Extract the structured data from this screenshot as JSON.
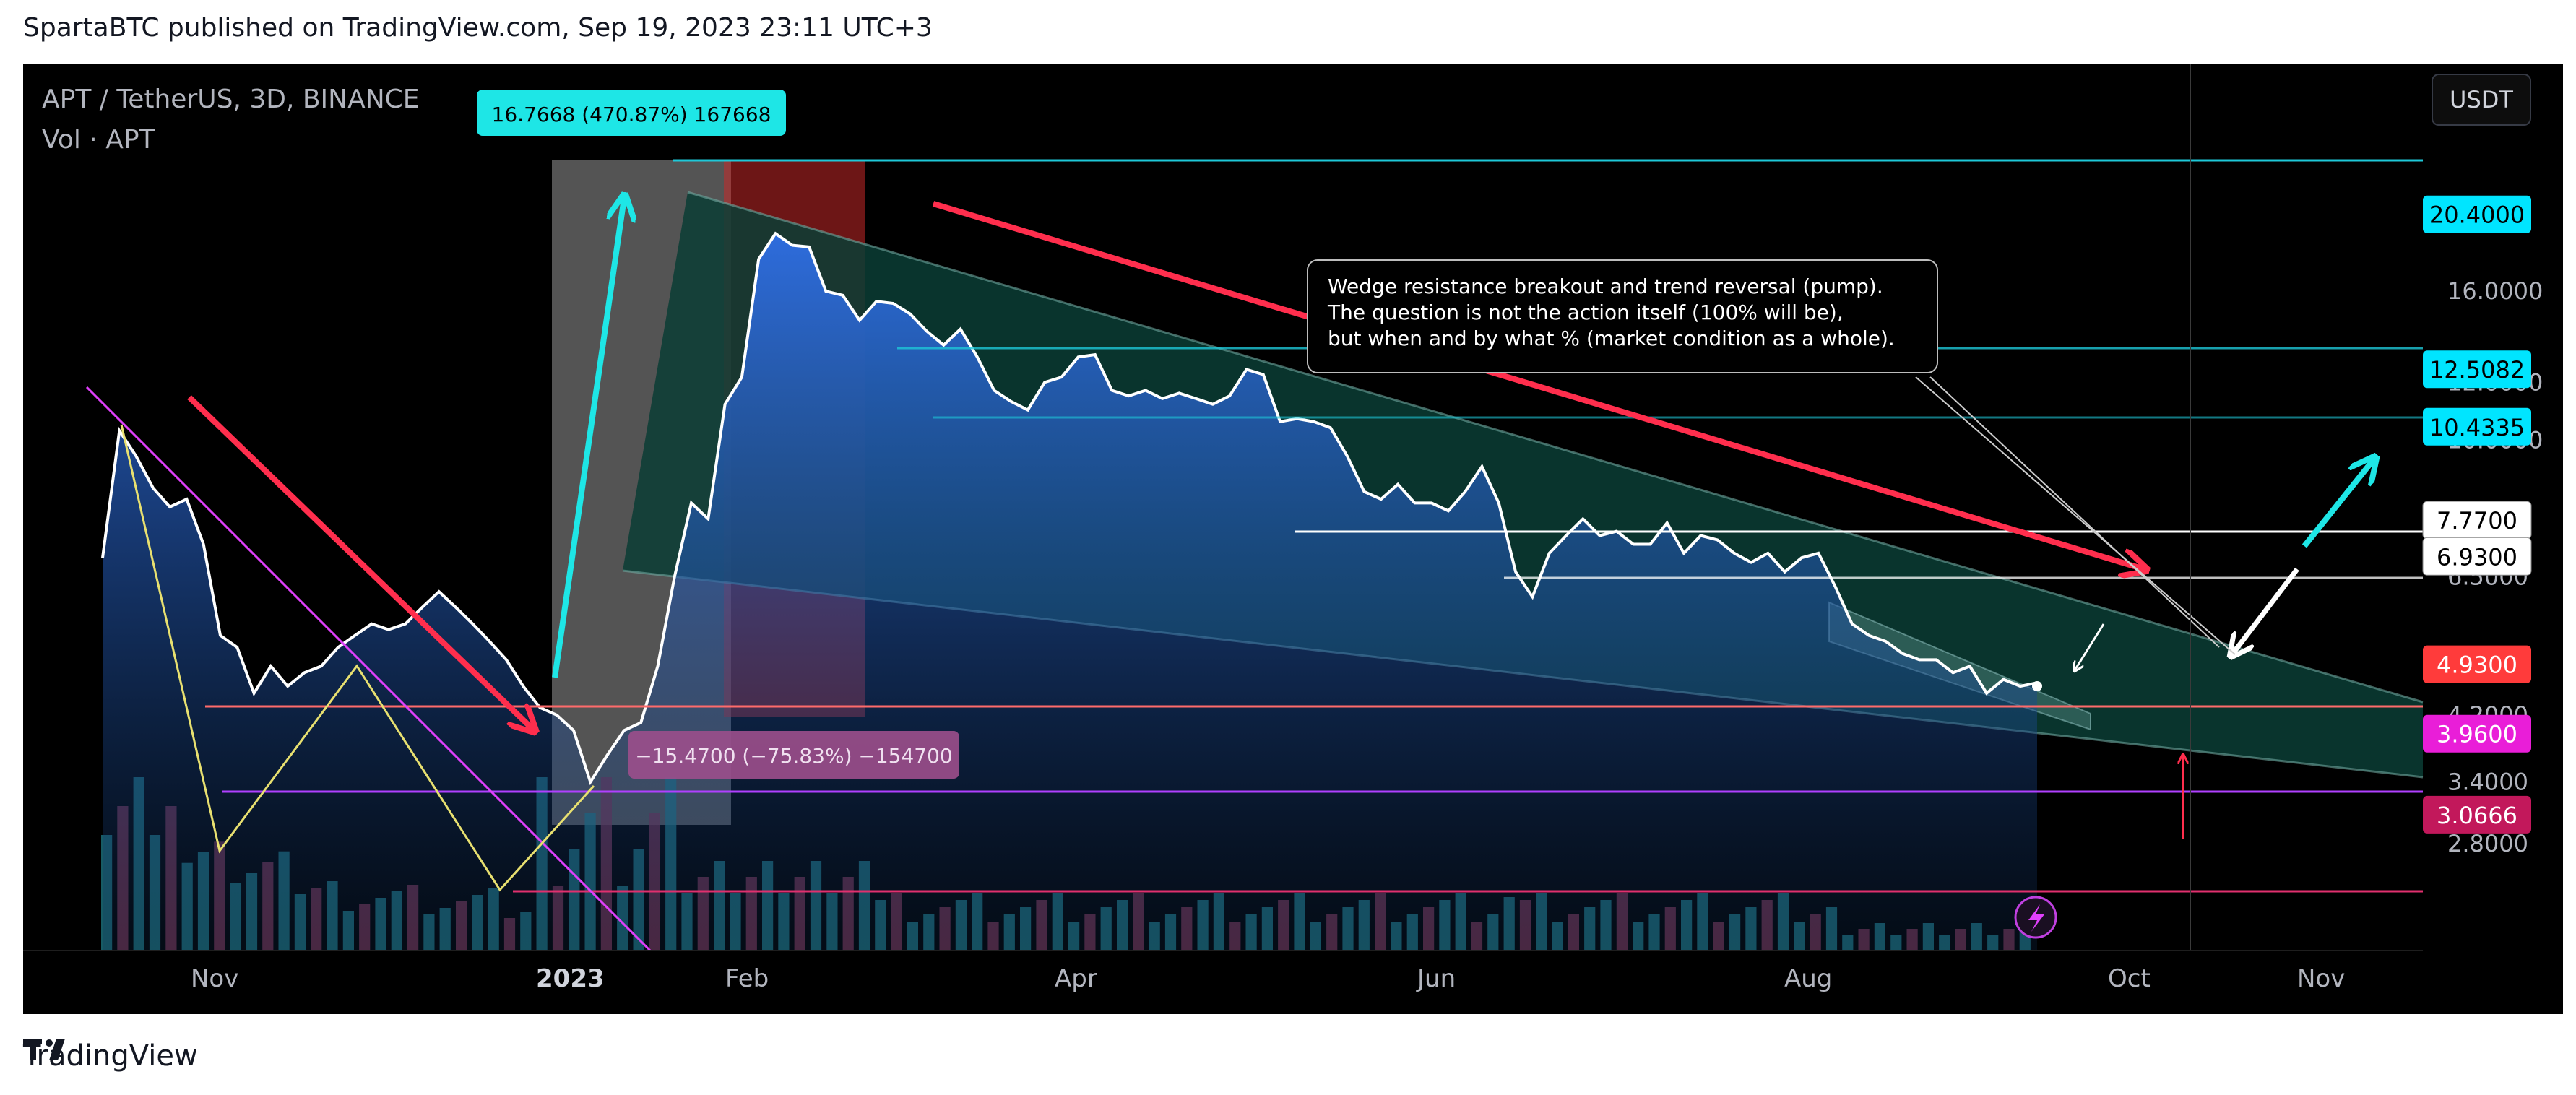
{
  "header": {
    "text": "SpartaBTC published on TradingView.com, Sep 19, 2023 23:11 UTC+3"
  },
  "symbol": {
    "pair": "APT / TetherUS, 3D, BINANCE",
    "volume": "Vol · APT"
  },
  "currency_button": "USDT",
  "footer": {
    "brand": "TradingView"
  },
  "colors": {
    "bg": "#000000",
    "cyan": "#00e5ff",
    "red": "#ff2e4d",
    "magenta": "#e040fb",
    "white": "#ffffff",
    "teal_zone": "#0b3d35"
  },
  "chart_data": {
    "type": "area",
    "title": "",
    "x_tick_labels": [
      "Nov",
      "2023",
      "Feb",
      "Apr",
      "Jun",
      "Aug",
      "Oct",
      "Nov"
    ],
    "y_tick_labels": [
      "16.0000",
      "12.0000",
      "10.0000",
      "6.5000",
      "4.2000",
      "3.4000",
      "2.8000"
    ],
    "price_tags": [
      {
        "label": "20.4000",
        "style": "cyan"
      },
      {
        "label": "12.5082",
        "style": "cyan"
      },
      {
        "label": "10.4335",
        "style": "cyan"
      },
      {
        "label": "7.7700",
        "style": "white"
      },
      {
        "label": "6.9300",
        "style": "white"
      },
      {
        "label": "4.9300",
        "style": "red"
      },
      {
        "label": "3.9600",
        "style": "magenta"
      },
      {
        "label": "3.0666",
        "style": "crimson"
      }
    ],
    "series": [
      {
        "values": [
          6.9,
          10.3,
          9.5,
          8.6,
          8.1,
          8.3,
          7.2,
          5.4,
          5.2,
          4.5,
          4.9,
          4.6,
          4.8,
          4.9,
          5.2,
          5.4,
          5.6,
          5.5,
          5.6,
          5.9,
          6.2,
          5.9,
          5.6,
          5.3,
          5.0,
          4.6,
          4.3,
          4.2,
          4.0,
          3.4,
          3.7,
          4.0,
          4.1,
          4.9,
          6.5,
          8.2,
          7.8,
          11.2,
          12.2,
          17.7,
          19.2,
          18.5,
          18.4,
          16.0,
          15.8,
          14.6,
          15.5,
          15.4,
          14.9,
          14.1,
          13.5,
          14.2,
          13.0,
          11.7,
          11.3,
          11.0,
          12.0,
          12.2,
          13.0,
          13.1,
          11.7,
          11.5,
          11.7,
          11.4,
          11.6,
          11.4,
          11.2,
          11.5,
          12.5,
          12.3,
          10.6,
          10.7,
          10.6,
          10.4,
          9.5,
          8.5,
          8.3,
          8.7,
          8.2,
          8.2,
          8.0,
          8.5,
          9.2,
          8.2,
          6.6,
          6.1,
          7.0,
          7.4,
          7.8,
          7.4,
          7.5,
          7.2,
          7.2,
          7.7,
          7.0,
          7.4,
          7.3,
          7.0,
          6.8,
          7.0,
          6.6,
          6.9,
          7.0,
          6.3,
          5.6,
          5.4,
          5.3,
          5.1,
          5.0,
          5.0,
          4.8,
          4.9,
          4.5,
          4.7,
          4.6,
          4.65
        ]
      }
    ],
    "annotations": [
      {
        "text": "16.7668 (470.87%) 167668",
        "style": "cyan-box"
      },
      {
        "text": "−15.4700 (−75.83%) −154700",
        "style": "purple-box"
      },
      {
        "text_lines": [
          "Wedge resistance breakout and trend reversal (pump).",
          "The question is not the action itself (100% will be),",
          "but when and by what % (market condition as a whole)."
        ],
        "style": "callout"
      }
    ],
    "grid": false,
    "legend": "none"
  }
}
